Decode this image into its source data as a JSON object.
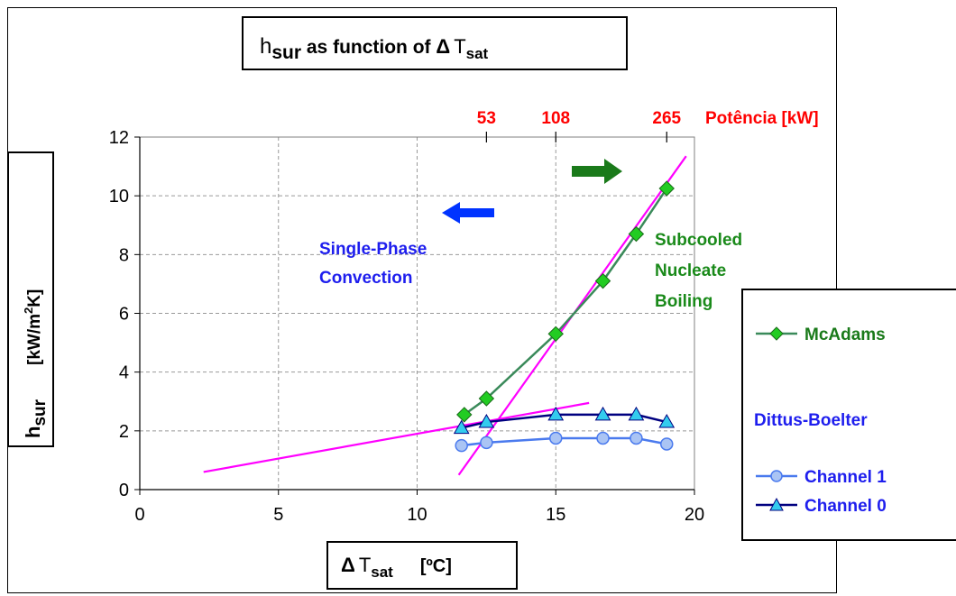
{
  "chart_data": {
    "type": "line",
    "title": {
      "main": "h",
      "sub": "sur",
      "middle": " as function of ",
      "delta": "Δ",
      "T": "T",
      "tsub": "sat"
    },
    "ylabel": {
      "main": "h",
      "sub": "sur",
      "units": "[kW/m",
      "sup": "2",
      "units_end": "K]"
    },
    "xlabel": {
      "delta": "Δ",
      "T": "T",
      "sub": "sat",
      "units": "[ºC]"
    },
    "xlim": [
      0,
      20
    ],
    "ylim": [
      0,
      12
    ],
    "x_ticks": [
      "0",
      "5",
      "10",
      "15",
      "20"
    ],
    "x_tick_values": [
      0,
      5,
      10,
      15,
      20
    ],
    "y_ticks": [
      "0",
      "2",
      "4",
      "6",
      "8",
      "10",
      "12"
    ],
    "y_tick_values": [
      0,
      2,
      4,
      6,
      8,
      10,
      12
    ],
    "grid": true,
    "top_axis": {
      "label": "Potência",
      "units": "[kW]",
      "ticks": [
        "53",
        "108",
        "265"
      ],
      "tick_x": [
        12.5,
        15,
        19
      ],
      "color": "#ff0000"
    },
    "series": [
      {
        "name": "McAdams",
        "marker": "diamond",
        "line_color": "#3a8a5a",
        "marker_color": "#22cc22",
        "x": [
          11.7,
          12.5,
          15.0,
          16.7,
          17.9,
          19.0
        ],
        "y": [
          2.55,
          3.1,
          5.3,
          7.1,
          8.7,
          10.25
        ]
      },
      {
        "name": "Channel 1",
        "marker": "circle",
        "line_color": "#4a7aee",
        "marker_color": "#aac4f4",
        "x": [
          11.6,
          12.5,
          15.0,
          16.7,
          17.9,
          19.0
        ],
        "y": [
          1.5,
          1.6,
          1.75,
          1.75,
          1.75,
          1.55
        ]
      },
      {
        "name": "Channel 0",
        "marker": "triangle",
        "line_color": "#000080",
        "marker_color": "#33ccee",
        "x": [
          11.6,
          12.5,
          15.0,
          16.7,
          17.9,
          19.0
        ],
        "y": [
          2.1,
          2.3,
          2.55,
          2.55,
          2.55,
          2.3
        ]
      }
    ],
    "fit_lines": [
      {
        "color": "#ff00ff",
        "x": [
          2.3,
          16.2
        ],
        "y": [
          0.6,
          2.95
        ]
      },
      {
        "color": "#ff00ff",
        "x": [
          11.5,
          19.7
        ],
        "y": [
          0.5,
          11.35
        ]
      }
    ],
    "annotations": {
      "single_phase": [
        "Single-Phase",
        "Convection"
      ],
      "subcooled": [
        "Subcooled",
        "Nucleate",
        "Boiling"
      ],
      "arrow_left_color": "#0033ff",
      "arrow_right_color": "#1a7a1a"
    },
    "legend": {
      "placement": "right",
      "mcadams": "McAdams",
      "group_title": "Dittus-Boelter",
      "channel1": "Channel 1",
      "channel0": "Channel 0"
    }
  }
}
